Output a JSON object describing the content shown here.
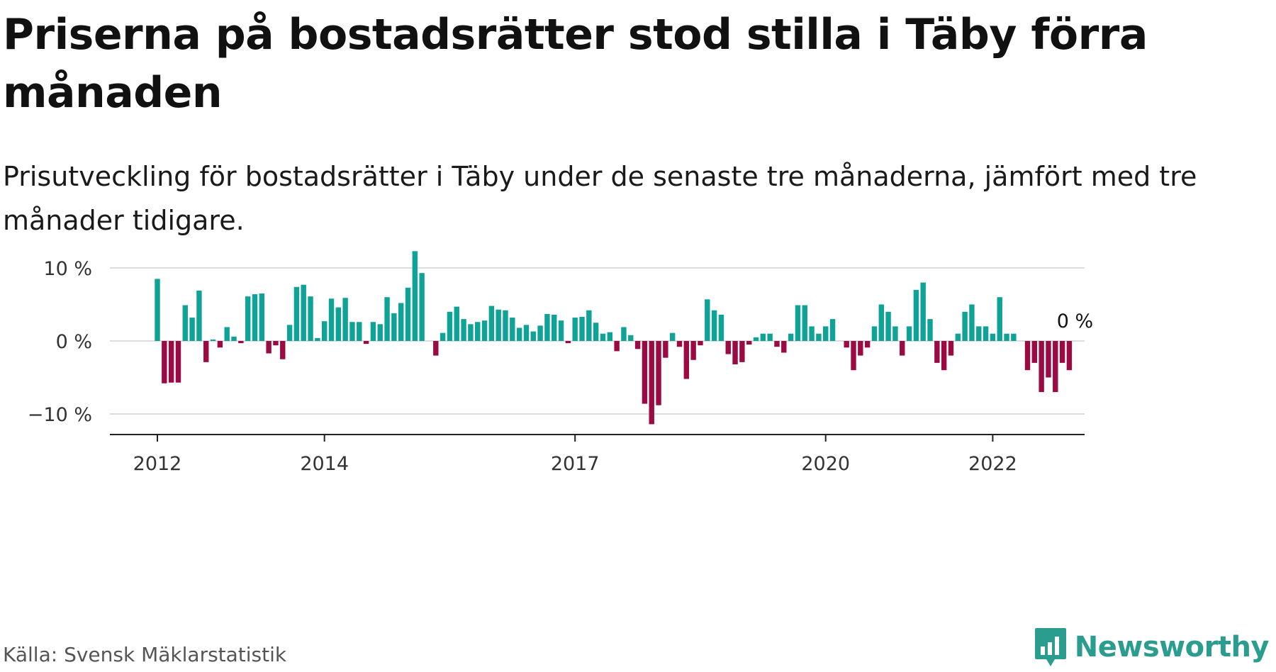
{
  "title": "Priserna på bostadsrätter stod stilla i Täby förra månaden",
  "subtitle": "Prisutveckling för bostadsrätter i Täby under de senaste tre månaderna, jämfört med tre månader tidigare.",
  "source": "Källa: Svensk Mäklarstatistik",
  "brand": "Newsworthy",
  "colors": {
    "positive": "#0fa397",
    "negative": "#9b0a43",
    "grid": "#dddddd",
    "axis": "#222222"
  },
  "chart_data": {
    "type": "bar",
    "x_start": "2012-01",
    "frequency": "monthly",
    "ylabel": "",
    "ylim": [
      -13,
      13
    ],
    "y_ticks": [
      10,
      0,
      -10
    ],
    "y_tick_labels": [
      "10 %",
      "0 %",
      "−10 %"
    ],
    "x_ticks": [
      "2012",
      "2014",
      "2017",
      "2020",
      "2022"
    ],
    "annotation": "0 %",
    "values": [
      8.5,
      -5.8,
      -5.7,
      -5.7,
      4.9,
      3.2,
      6.9,
      -2.9,
      0.2,
      -0.9,
      1.9,
      0.6,
      -0.3,
      6.1,
      6.4,
      6.5,
      -1.7,
      -0.6,
      -2.5,
      2.2,
      7.4,
      7.7,
      6.1,
      0.4,
      2.7,
      5.8,
      4.6,
      5.9,
      2.6,
      2.6,
      -0.4,
      2.6,
      2.3,
      6.0,
      3.8,
      5.2,
      7.3,
      12.3,
      9.3,
      0.0,
      -2.0,
      1.1,
      4.0,
      4.7,
      3.0,
      2.3,
      2.6,
      2.8,
      4.8,
      4.3,
      4.2,
      3.2,
      1.8,
      2.2,
      1.3,
      2.1,
      3.7,
      3.6,
      2.8,
      -0.3,
      3.2,
      3.3,
      4.2,
      2.5,
      1.0,
      1.2,
      -1.4,
      1.9,
      0.8,
      -1.1,
      -8.6,
      -11.4,
      -8.8,
      -2.3,
      1.1,
      -0.8,
      -5.2,
      -2.6,
      -0.6,
      5.7,
      4.2,
      3.6,
      -1.8,
      -3.2,
      -2.9,
      -0.5,
      0.5,
      1.0,
      1.0,
      -0.8,
      -1.6,
      1.0,
      4.9,
      4.9,
      2.0,
      1.0,
      2.0,
      3.0,
      0.0,
      -0.9,
      -4.0,
      -2.0,
      -0.9,
      2.0,
      5.0,
      4.0,
      2.0,
      -2.0,
      2.0,
      7.0,
      8.0,
      3.0,
      -3.0,
      -4.0,
      -2.0,
      1.0,
      4.0,
      5.0,
      2.0,
      2.0,
      1.0,
      6.0,
      1.0,
      1.0,
      0.0,
      -4.0,
      -3.0,
      -7.0,
      -5.0,
      -7.0,
      -3.0,
      -4.0
    ]
  }
}
